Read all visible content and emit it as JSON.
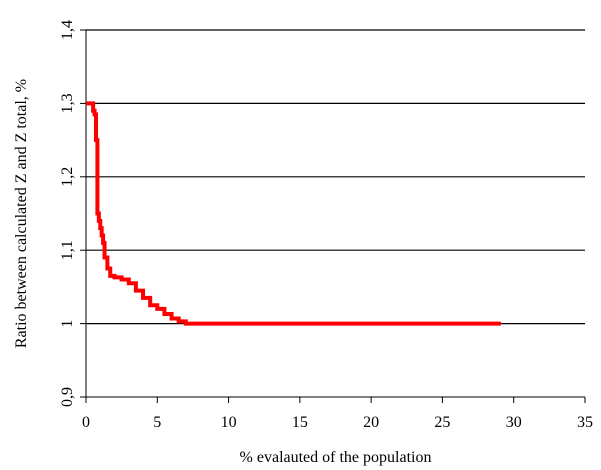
{
  "chart_data": {
    "type": "line",
    "title": "",
    "xlabel": "% evalauted of the population",
    "ylabel": "Ratio between calculated Z and Z total, %",
    "xlim": [
      0,
      35
    ],
    "ylim": [
      0.9,
      1.4
    ],
    "xticks": [
      "0",
      "5",
      "10",
      "15",
      "20",
      "25",
      "30",
      "35"
    ],
    "yticks": [
      "0,9",
      "1",
      "1,1",
      "1,2",
      "1,3",
      "1,4"
    ],
    "grid": "horizontal",
    "legend": "none",
    "series": [
      {
        "color": "#ff0000",
        "x": [
          0,
          0.5,
          0.5,
          0.6,
          0.7,
          0.7,
          0.8,
          0.8,
          0.9,
          1.0,
          1.1,
          1.2,
          1.3,
          1.5,
          1.7,
          2.0,
          2.5,
          3.0,
          3.5,
          4.0,
          4.5,
          5.0,
          5.5,
          6.0,
          6.5,
          7.0,
          29.1
        ],
        "y": [
          1.3,
          1.3,
          1.29,
          1.285,
          1.28,
          1.25,
          1.2,
          1.15,
          1.14,
          1.13,
          1.12,
          1.11,
          1.09,
          1.075,
          1.065,
          1.063,
          1.06,
          1.055,
          1.045,
          1.035,
          1.025,
          1.02,
          1.013,
          1.007,
          1.003,
          1.0,
          1.0
        ]
      }
    ]
  }
}
